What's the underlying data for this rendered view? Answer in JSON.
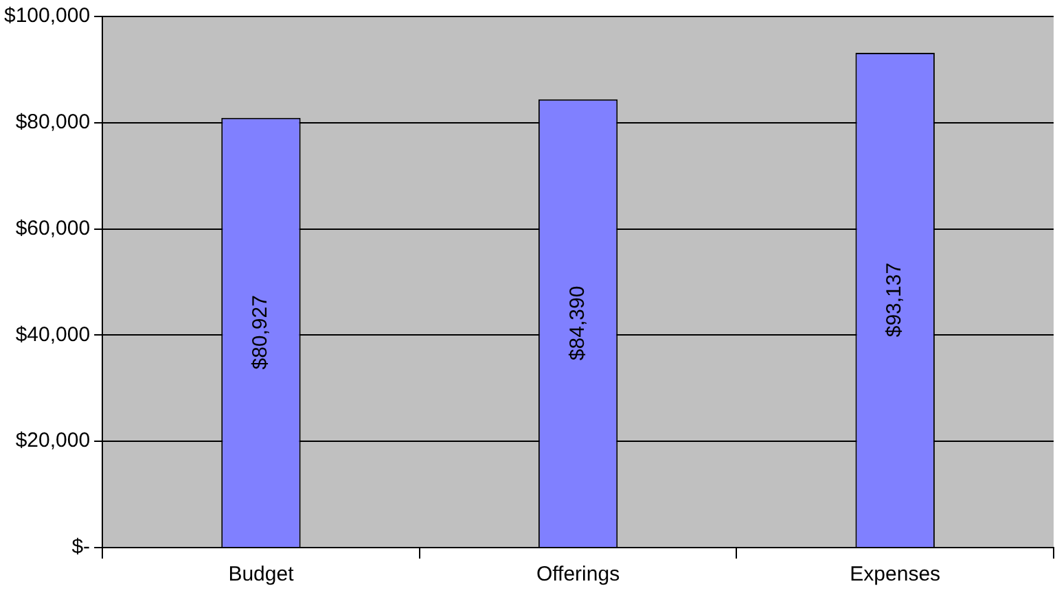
{
  "chart_data": {
    "type": "bar",
    "categories": [
      "Budget",
      "Offerings",
      "Expenses"
    ],
    "values": [
      80927,
      84390,
      93137
    ],
    "value_labels": [
      "$80,927",
      "$84,390",
      "$93,137"
    ],
    "color": "#8080ff",
    "ylim": [
      0,
      100000
    ],
    "yticks": [
      {
        "value": 0,
        "label": "$-"
      },
      {
        "value": 20000,
        "label": "$20,000"
      },
      {
        "value": 40000,
        "label": "$40,000"
      },
      {
        "value": 60000,
        "label": "$60,000"
      },
      {
        "value": 80000,
        "label": "$80,000"
      },
      {
        "value": 100000,
        "label": "$100,000"
      }
    ],
    "grid": "y",
    "legend": false
  }
}
